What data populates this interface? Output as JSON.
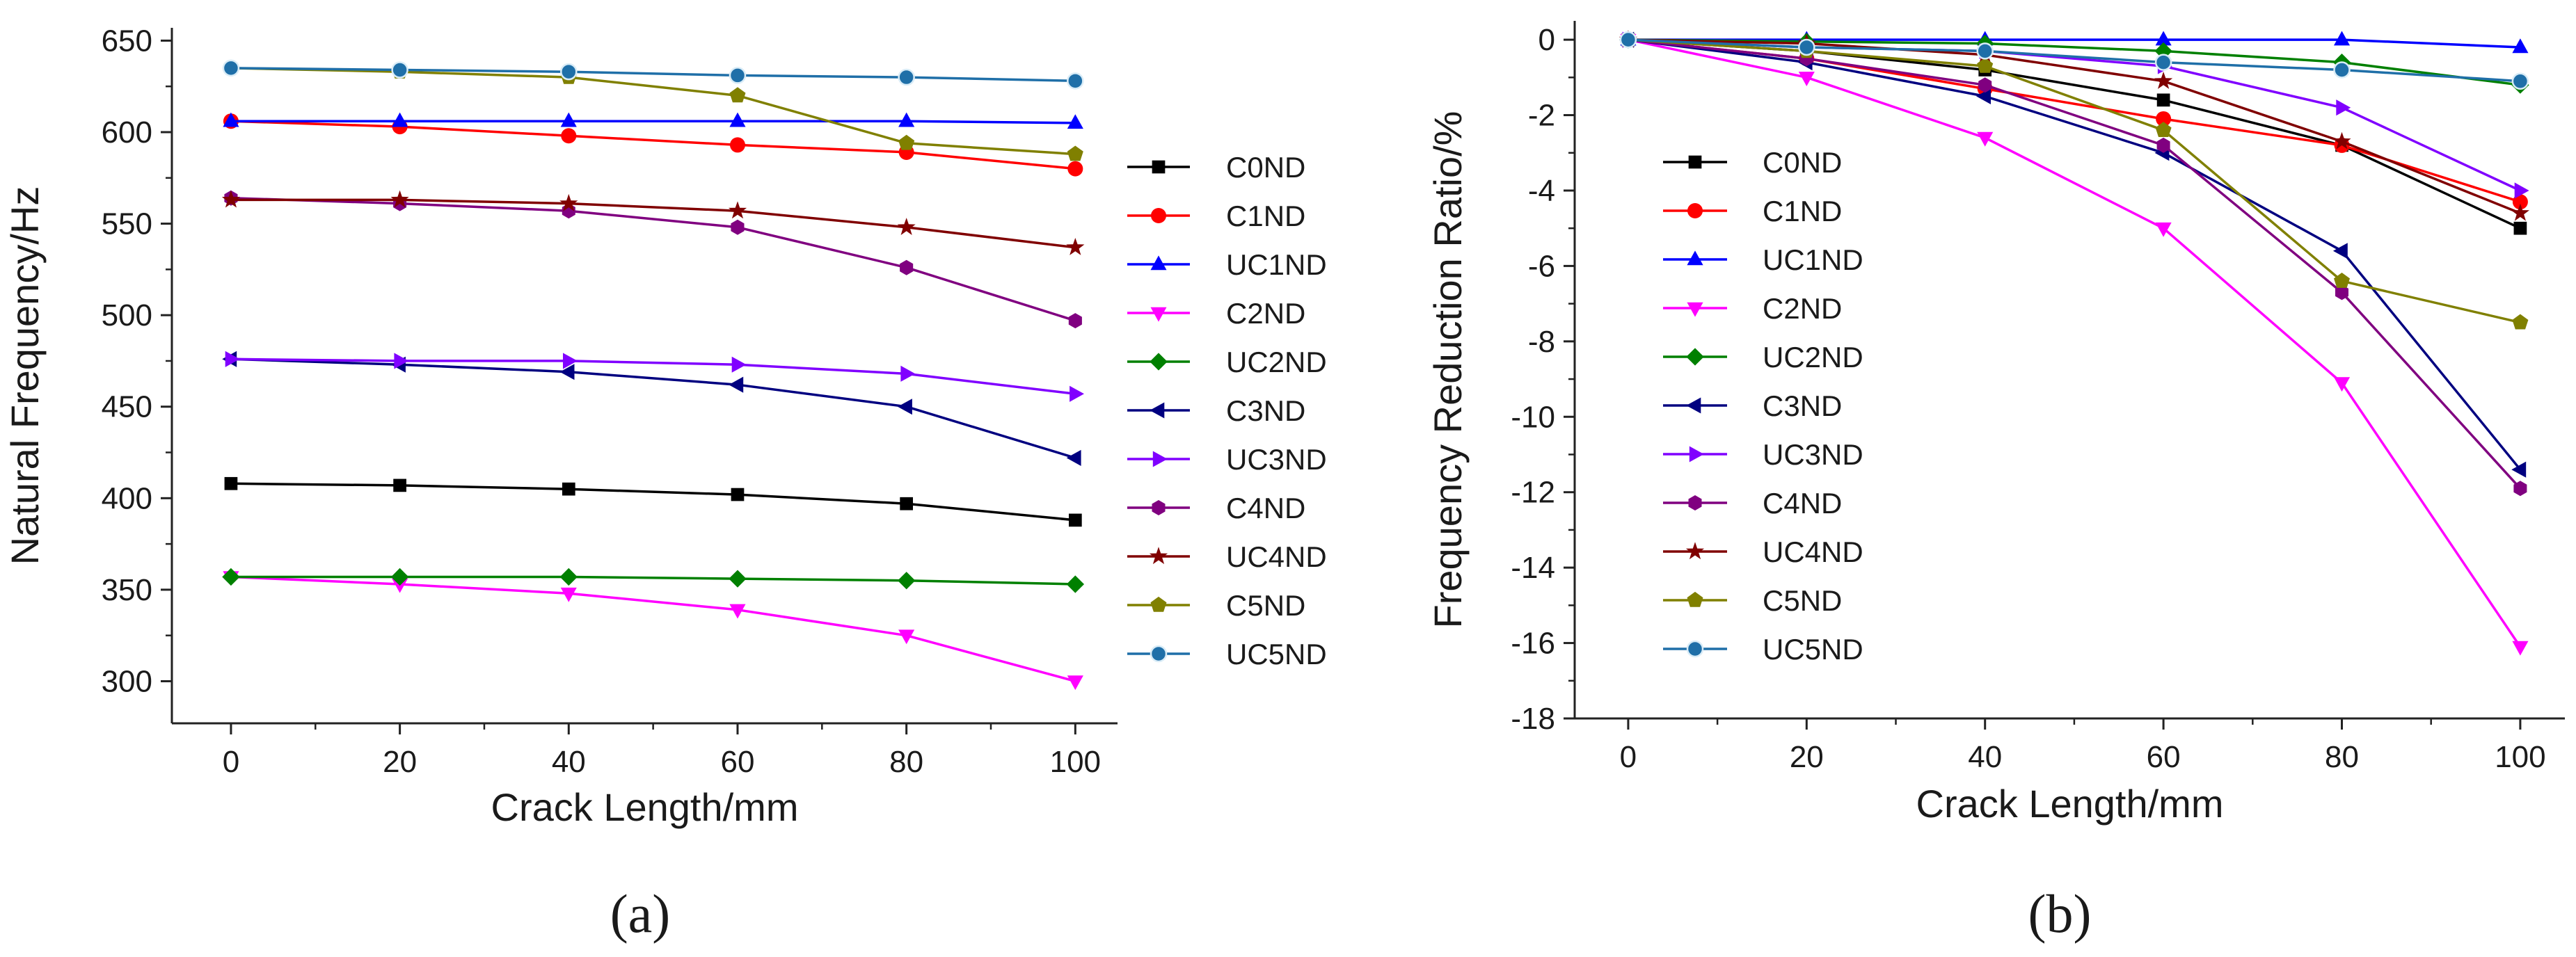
{
  "chart_data": [
    {
      "type": "line",
      "panel_label": "(a)",
      "xlabel": "Crack Length/mm",
      "ylabel": "Natural Frequency/Hz",
      "x": [
        0,
        20,
        40,
        60,
        80,
        100
      ],
      "xlim": [
        -7,
        105
      ],
      "ylim": [
        277,
        657
      ],
      "xticks": [
        0,
        20,
        40,
        60,
        80,
        100
      ],
      "yticks": [
        300,
        350,
        400,
        450,
        500,
        550,
        600,
        650
      ],
      "legend_position": "right",
      "series": [
        {
          "name": "C0ND",
          "color": "#000000",
          "marker": "square",
          "values": [
            408,
            407,
            405,
            402,
            397,
            388
          ]
        },
        {
          "name": "C1ND",
          "color": "#ff0000",
          "marker": "circle",
          "values": [
            606,
            603,
            598,
            593,
            589,
            580
          ]
        },
        {
          "name": "UC1ND",
          "color": "#0000ff",
          "marker": "triangle-up",
          "values": [
            606,
            606,
            606,
            606,
            606,
            605
          ]
        },
        {
          "name": "C2ND",
          "color": "#ff00ff",
          "marker": "triangle-down",
          "values": [
            357,
            353,
            348,
            339,
            325,
            300
          ]
        },
        {
          "name": "UC2ND",
          "color": "#008000",
          "marker": "diamond",
          "values": [
            357,
            357,
            357,
            356,
            355,
            353
          ]
        },
        {
          "name": "C3ND",
          "color": "#000080",
          "marker": "triangle-left",
          "values": [
            476,
            473,
            469,
            462,
            450,
            422
          ]
        },
        {
          "name": "UC3ND",
          "color": "#8000ff",
          "marker": "triangle-right",
          "values": [
            476,
            475,
            475,
            473,
            468,
            457
          ]
        },
        {
          "name": "C4ND",
          "color": "#800080",
          "marker": "hexagon",
          "values": [
            564,
            561,
            557,
            548,
            526,
            497
          ]
        },
        {
          "name": "UC4ND",
          "color": "#800000",
          "marker": "star",
          "values": [
            563,
            563,
            561,
            557,
            548,
            537
          ]
        },
        {
          "name": "C5ND",
          "color": "#808000",
          "marker": "pentagon",
          "values": [
            635,
            633,
            630,
            620,
            594,
            588
          ]
        },
        {
          "name": "UC5ND",
          "color": "#1f6fa8",
          "marker": "sphere",
          "values": [
            635,
            634,
            633,
            631,
            630,
            628
          ]
        }
      ]
    },
    {
      "type": "line",
      "panel_label": "(b)",
      "xlabel": "Crack Length/mm",
      "ylabel": "Frequency Reduction Ratio/%",
      "x": [
        0,
        20,
        40,
        60,
        80,
        100
      ],
      "xlim": [
        -6,
        105
      ],
      "ylim": [
        -18,
        0.5
      ],
      "xticks": [
        0,
        20,
        40,
        60,
        80,
        100
      ],
      "yticks": [
        0,
        -2,
        -4,
        -6,
        -8,
        -10,
        -12,
        -14,
        -16,
        -18
      ],
      "legend_position": "inside-left",
      "series": [
        {
          "name": "C0ND",
          "color": "#000000",
          "marker": "square",
          "values": [
            0,
            -0.3,
            -0.8,
            -1.6,
            -2.8,
            -5.0
          ]
        },
        {
          "name": "C1ND",
          "color": "#ff0000",
          "marker": "circle",
          "values": [
            0,
            -0.5,
            -1.3,
            -2.1,
            -2.8,
            -4.3
          ]
        },
        {
          "name": "UC1ND",
          "color": "#0000ff",
          "marker": "triangle-up",
          "values": [
            0,
            0,
            0,
            0,
            0,
            -0.2
          ]
        },
        {
          "name": "C2ND",
          "color": "#ff00ff",
          "marker": "triangle-down",
          "values": [
            0,
            -1.0,
            -2.6,
            -5.0,
            -9.1,
            -16.1
          ]
        },
        {
          "name": "UC2ND",
          "color": "#008000",
          "marker": "diamond",
          "values": [
            0,
            -0.05,
            -0.1,
            -0.3,
            -0.6,
            -1.2
          ]
        },
        {
          "name": "C3ND",
          "color": "#000080",
          "marker": "triangle-left",
          "values": [
            0,
            -0.6,
            -1.5,
            -3.0,
            -5.6,
            -11.4
          ]
        },
        {
          "name": "UC3ND",
          "color": "#8000ff",
          "marker": "triangle-right",
          "values": [
            0,
            -0.2,
            -0.3,
            -0.7,
            -1.8,
            -4.0
          ]
        },
        {
          "name": "C4ND",
          "color": "#800080",
          "marker": "hexagon",
          "values": [
            0,
            -0.5,
            -1.2,
            -2.8,
            -6.7,
            -11.9
          ]
        },
        {
          "name": "UC4ND",
          "color": "#800000",
          "marker": "star",
          "values": [
            0,
            -0.1,
            -0.4,
            -1.1,
            -2.7,
            -4.6
          ]
        },
        {
          "name": "C5ND",
          "color": "#808000",
          "marker": "pentagon",
          "values": [
            0,
            -0.3,
            -0.7,
            -2.4,
            -6.4,
            -7.5
          ]
        },
        {
          "name": "UC5ND",
          "color": "#1f6fa8",
          "marker": "sphere",
          "values": [
            0,
            -0.2,
            -0.3,
            -0.6,
            -0.8,
            -1.1
          ]
        }
      ]
    }
  ]
}
